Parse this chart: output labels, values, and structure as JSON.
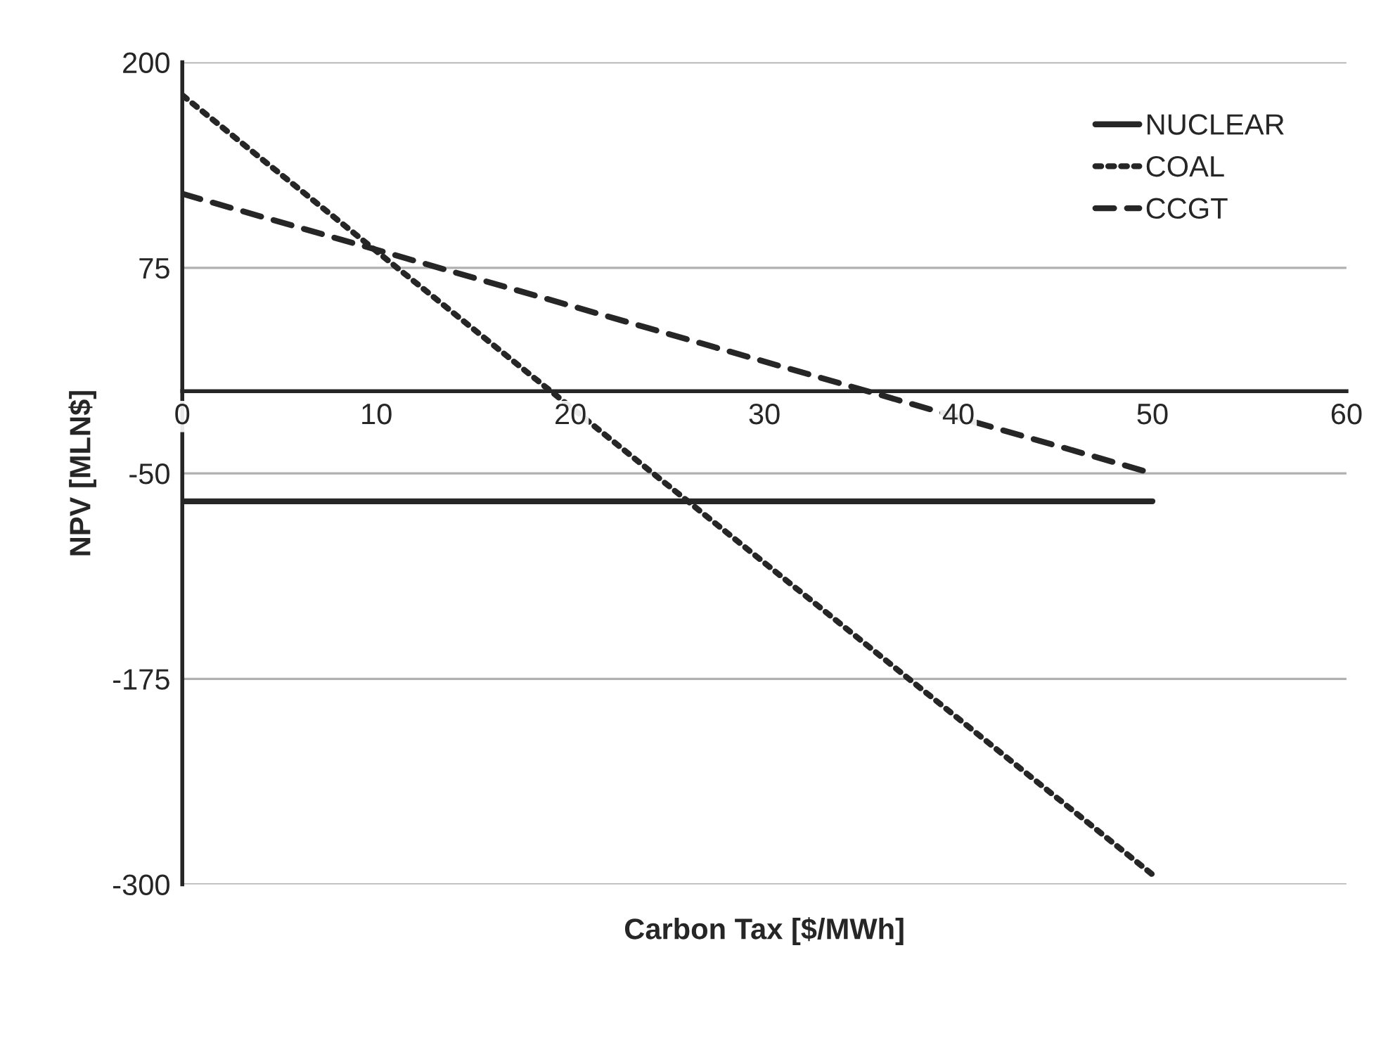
{
  "chart_data": {
    "type": "line",
    "xlabel": "Carbon Tax [$/MWh]",
    "ylabel": "NPV [MLN$]",
    "x": [
      0,
      50
    ],
    "series": [
      {
        "name": "NUCLEAR",
        "color": "#262626",
        "line_style": "solid",
        "values": [
          -67,
          -67
        ]
      },
      {
        "name": "COAL",
        "color": "#262626",
        "line_style": "dotted",
        "values": [
          180,
          -294
        ]
      },
      {
        "name": "CCGT",
        "color": "#262626",
        "line_style": "dashed",
        "values": [
          120,
          -50
        ]
      }
    ],
    "xlim": [
      0,
      60
    ],
    "xticks": [
      0,
      10,
      20,
      30,
      40,
      50,
      60
    ],
    "ylim": [
      -300,
      200
    ],
    "yticks": [
      -300,
      -175,
      -50,
      75,
      200
    ],
    "grid": "y",
    "legend": "top right",
    "marker": "none"
  }
}
